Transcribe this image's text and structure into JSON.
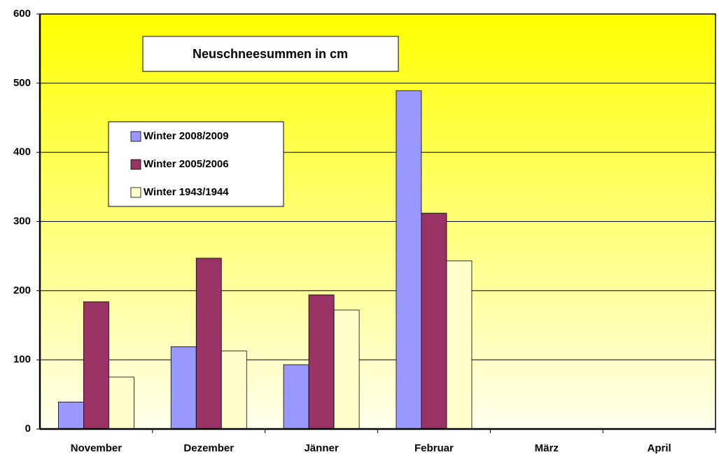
{
  "chart_data": {
    "type": "bar",
    "title": "Neuschneesummen in cm",
    "categories": [
      "November",
      "Dezember",
      "Jänner",
      "Februar",
      "März",
      "April"
    ],
    "series": [
      {
        "name": "Winter 2008/2009",
        "color": "#9999ff",
        "values": [
          39,
          119,
          93,
          489,
          null,
          null
        ]
      },
      {
        "name": "Winter 2005/2006",
        "color": "#993366",
        "values": [
          184,
          247,
          194,
          312,
          null,
          null
        ]
      },
      {
        "name": "Winter 1943/1944",
        "color": "#ffffcc",
        "values": [
          75,
          113,
          172,
          243,
          null,
          null
        ]
      }
    ],
    "ylim": [
      0,
      600
    ],
    "yticks": [
      0,
      100,
      200,
      300,
      400,
      500,
      600
    ],
    "grid": true
  }
}
